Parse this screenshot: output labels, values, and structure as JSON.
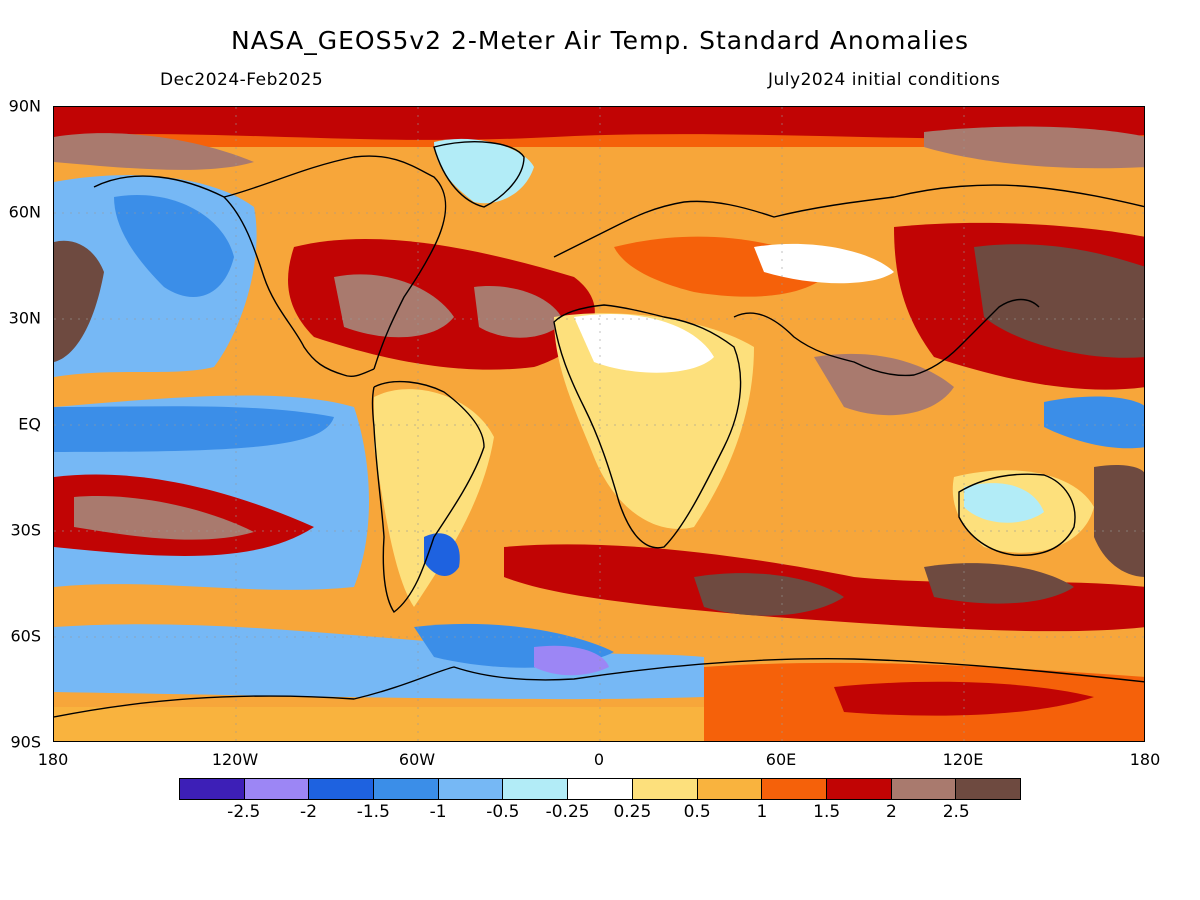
{
  "header": {
    "title": "NASA_GEOS5v2 2-Meter Air Temp. Standard Anomalies",
    "period": "Dec2024-Feb2025",
    "init": "July2024 initial conditions"
  },
  "axes": {
    "lat_labels": [
      "90N",
      "60N",
      "30N",
      "EQ",
      "30S",
      "60S",
      "90S"
    ],
    "lon_labels": [
      "180",
      "120W",
      "60W",
      "0",
      "60E",
      "120E",
      "180"
    ]
  },
  "colorbar": {
    "colors": [
      "#3d1fb7",
      "#9c86f5",
      "#1e62e0",
      "#3b8ee8",
      "#76b8f5",
      "#b2ecf7",
      "#ffffff",
      "#fde07c",
      "#f9b33e",
      "#f5610a",
      "#c10404",
      "#a97a6e",
      "#6e4a40"
    ],
    "labels": [
      "-2.5",
      "-2",
      "-1.5",
      "-1",
      "-0.5",
      "-0.25",
      "0.25",
      "0.5",
      "1",
      "1.5",
      "2",
      "2.5"
    ]
  }
}
